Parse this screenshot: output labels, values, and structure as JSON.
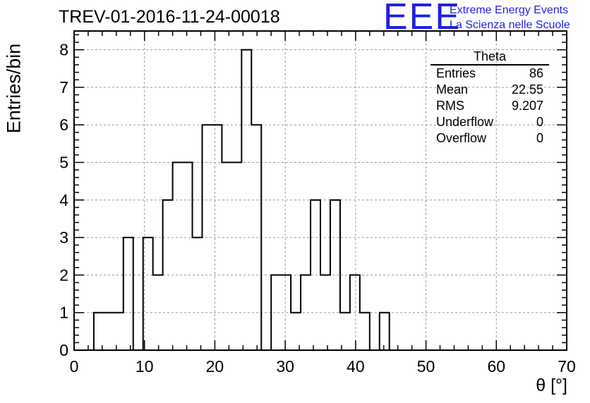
{
  "header": {
    "run_title": "TREV-01-2016-11-24-00018",
    "logo_mark": "EEE",
    "logo_line1": "Extreme Energy Events",
    "logo_line2": "La Scienza nelle Scuole"
  },
  "stats_box": {
    "title": "Theta",
    "rows": [
      {
        "label": "Entries",
        "value": "86"
      },
      {
        "label": "Mean",
        "value": "22.55"
      },
      {
        "label": "RMS",
        "value": "9.207"
      },
      {
        "label": "Underflow",
        "value": "0"
      },
      {
        "label": "Overflow",
        "value": "0"
      }
    ]
  },
  "colors": {
    "logo": "#1f1fe6",
    "line": "#000000",
    "grid": "#9a9a9a"
  },
  "chart_data": {
    "type": "bar",
    "title": "TREV-01-2016-11-24-00018",
    "xlabel": "θ [°]",
    "ylabel": "Entries/bin",
    "xlim": [
      0,
      70
    ],
    "ylim": [
      0,
      8.5
    ],
    "grid": true,
    "bin_width": 1.4,
    "bin_edges_start": 0,
    "counts": [
      0,
      0,
      1,
      1,
      1,
      3,
      0,
      3,
      2,
      4,
      5,
      5,
      3,
      6,
      6,
      5,
      5,
      8,
      6,
      0,
      2,
      2,
      1,
      2,
      4,
      2,
      4,
      1,
      2,
      1,
      0,
      1,
      0,
      0,
      0,
      0,
      0,
      0,
      0,
      0,
      0,
      0,
      0,
      0,
      0,
      0,
      0,
      0,
      0,
      0
    ],
    "x_ticks": [
      0,
      10,
      20,
      30,
      40,
      50,
      60,
      70
    ],
    "y_ticks": [
      0,
      1,
      2,
      3,
      4,
      5,
      6,
      7,
      8
    ]
  }
}
